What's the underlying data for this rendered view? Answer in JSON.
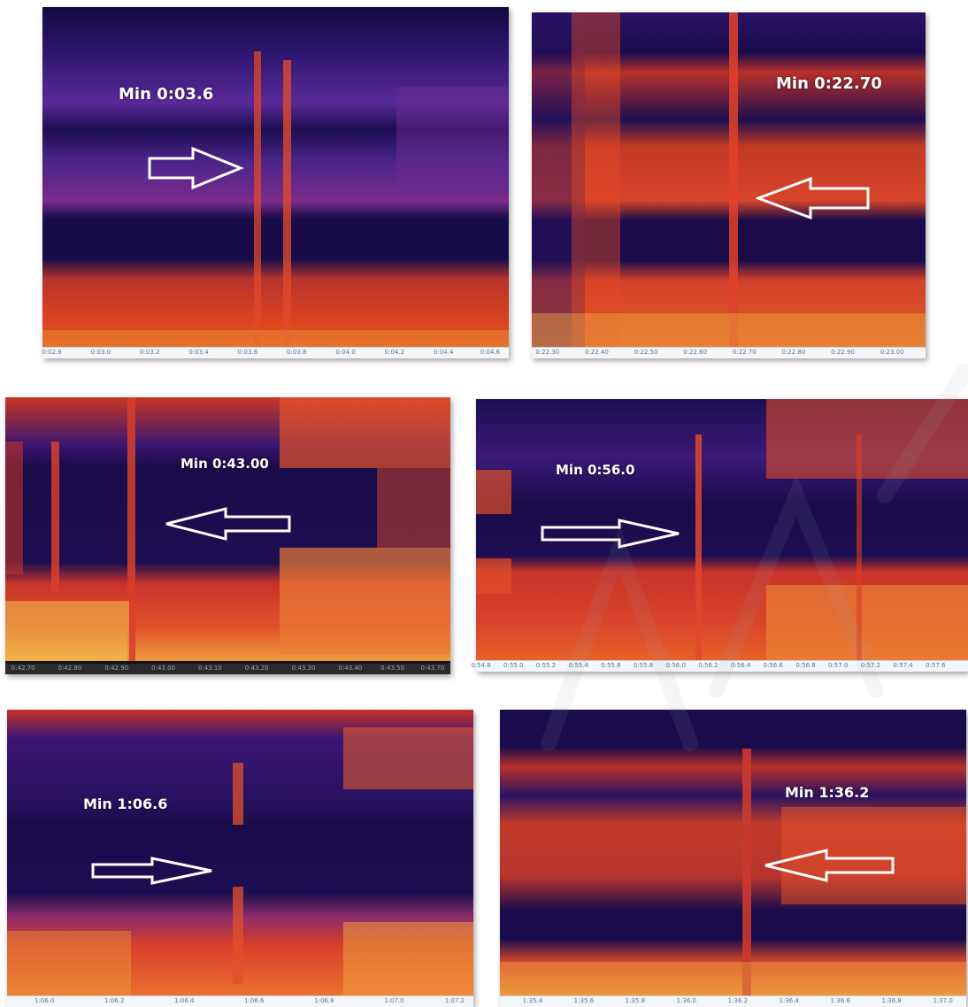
{
  "panels": [
    {
      "label": "Min 0:03.6",
      "arrow": "right",
      "ticks": [
        "0:02.8",
        "0:03.0",
        "0:03.2",
        "0:03.4",
        "0:03.6",
        "0:03.8",
        "0:04.0",
        "0:04.2",
        "0:04.4",
        "0:04.6"
      ]
    },
    {
      "label": "Min 0:22.70",
      "arrow": "left",
      "ticks": [
        "0:22.30",
        "0:22.40",
        "0:22.50",
        "0:22.60",
        "0:22.70",
        "0:22.80",
        "0:22.90",
        "0:23.00"
      ]
    },
    {
      "label": "Min 0:43.00",
      "arrow": "left",
      "ticks": [
        "0:42.70",
        "0:42.80",
        "0:42.90",
        "0:43.00",
        "0:43.10",
        "0:43.20",
        "0:43.30",
        "0:43.40",
        "0:43.50",
        "0:43.70"
      ]
    },
    {
      "label": "Min 0:56.0",
      "arrow": "right",
      "ticks": [
        "0:54.8",
        "0:55.0",
        "0:55.2",
        "0:55.4",
        "0:55.6",
        "0:55.8",
        "0:56.0",
        "0:56.2",
        "0:56.4",
        "0:56.6",
        "0:56.8",
        "0:57.0",
        "0:57.2",
        "0:57.4",
        "0:57.6"
      ]
    },
    {
      "label": "Min 1:06.6",
      "arrow": "right",
      "ticks": [
        "1:06.0",
        "1:06.2",
        "1:06.4",
        "1:06.6",
        "1:06.8",
        "1:07.0",
        "1:07.2"
      ]
    },
    {
      "label": "Min 1:36.2",
      "arrow": "left",
      "ticks": [
        "1:35.4",
        "1:35.6",
        "1:35.8",
        "1:36.0",
        "1:36.2",
        "1:36.4",
        "1:36.6",
        "1:36.8",
        "1:37.0"
      ]
    }
  ],
  "colors": {
    "dark": "#1a0c4a",
    "purple": "#3c1a78",
    "red": "#d63a1c",
    "yellow": "#f7d75a"
  }
}
